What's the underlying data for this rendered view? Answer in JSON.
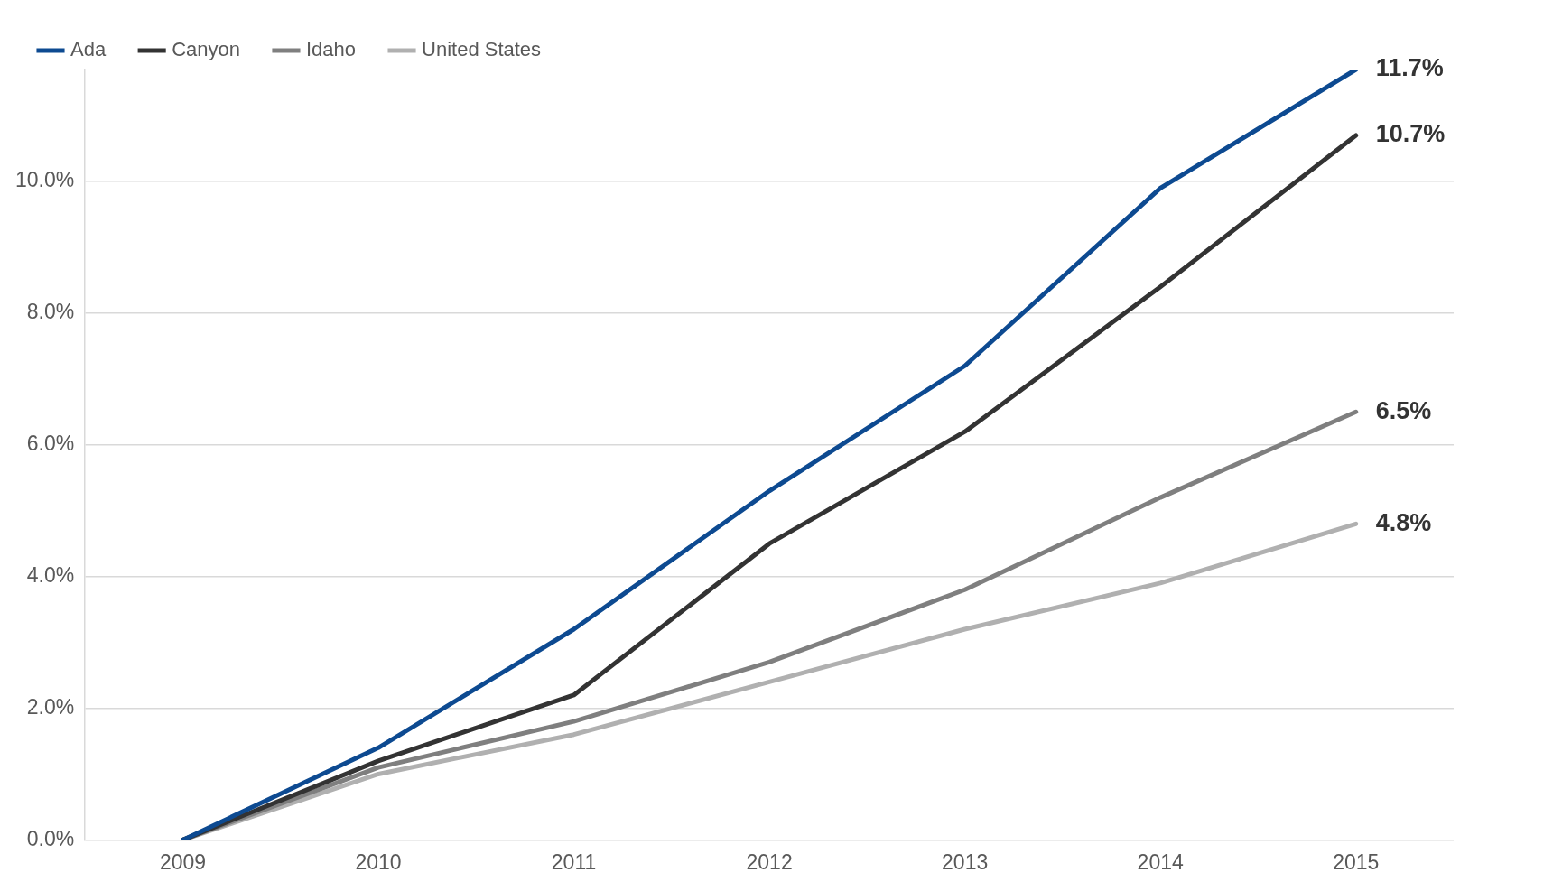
{
  "chart_data": {
    "type": "line",
    "categories": [
      "2009",
      "2010",
      "2011",
      "2012",
      "2013",
      "2014",
      "2015"
    ],
    "series": [
      {
        "name": "Ada",
        "color": "#0d4a91",
        "values": [
          0,
          1.4,
          3.2,
          5.3,
          7.2,
          9.9,
          11.7
        ],
        "value_labels": [
          null,
          null,
          null,
          null,
          null,
          null,
          "11.7%"
        ]
      },
      {
        "name": "Canyon",
        "color": "#333333",
        "values": [
          0,
          1.2,
          2.2,
          4.5,
          6.2,
          8.4,
          10.7
        ],
        "value_labels": [
          null,
          null,
          null,
          null,
          null,
          null,
          "10.7%"
        ]
      },
      {
        "name": "Idaho",
        "color": "#7f7f7f",
        "values": [
          0,
          1.1,
          1.8,
          2.7,
          3.8,
          5.2,
          6.5
        ],
        "value_labels": [
          null,
          null,
          null,
          null,
          null,
          null,
          "6.5%"
        ]
      },
      {
        "name": "United States",
        "color": "#b0b0b0",
        "values": [
          0,
          1.0,
          1.6,
          2.4,
          3.2,
          3.9,
          4.8
        ],
        "value_labels": [
          null,
          null,
          null,
          null,
          null,
          null,
          "4.8%"
        ]
      }
    ],
    "yticks": [
      {
        "value": 0,
        "label": "0.0%"
      },
      {
        "value": 2,
        "label": "2.0%"
      },
      {
        "value": 4,
        "label": "4.0%"
      },
      {
        "value": 6,
        "label": "6.0%"
      },
      {
        "value": 8,
        "label": "8.0%"
      },
      {
        "value": 10,
        "label": "10.0%"
      }
    ],
    "ylim": [
      0,
      11.7
    ],
    "grid": "y",
    "legend": "top left",
    "marker": "none",
    "line_style": "solid"
  }
}
